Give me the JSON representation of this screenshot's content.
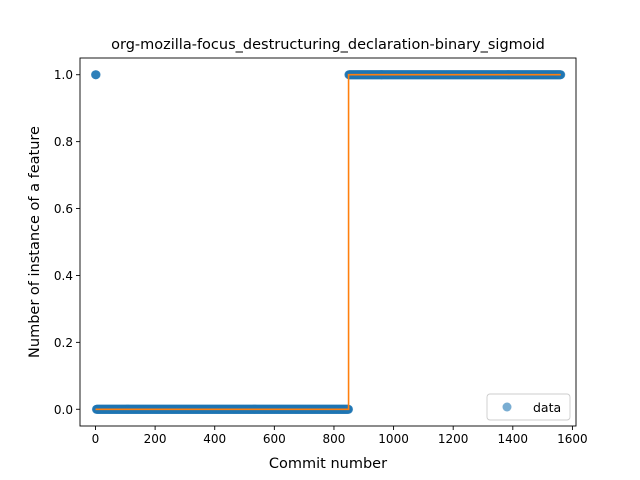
{
  "chart_data": {
    "type": "scatter",
    "title": "org-mozilla-focus_destructuring_declaration-binary_sigmoid",
    "xlabel": "Commit number",
    "ylabel": "Number of instance of a feature",
    "xlim": [
      -52,
      1612
    ],
    "ylim": [
      -0.05,
      1.05
    ],
    "xticks": [
      0,
      200,
      400,
      600,
      800,
      1000,
      1200,
      1400,
      1600
    ],
    "xtick_labels": [
      "0",
      "200",
      "400",
      "600",
      "800",
      "1000",
      "1200",
      "1400",
      "1600"
    ],
    "yticks": [
      0.0,
      0.2,
      0.4,
      0.6,
      0.8,
      1.0
    ],
    "ytick_labels": [
      "0.0",
      "0.2",
      "0.4",
      "0.6",
      "0.8",
      "1.0"
    ],
    "grid": false,
    "legend_position": "lower right",
    "series": [
      {
        "name": "data",
        "kind": "points",
        "color": "#1f77b4",
        "opacity": 0.6,
        "segments": [
          {
            "x_range": [
              0,
              2
            ],
            "y": 1
          },
          {
            "x_range": [
              3,
              849
            ],
            "y": 0
          },
          {
            "x_range": [
              850,
              1561
            ],
            "y": 1
          }
        ]
      },
      {
        "kind": "step-line",
        "color": "#ff7f0e",
        "x": [
          0,
          849,
          849,
          1561
        ],
        "y": [
          0,
          0,
          1,
          1
        ]
      }
    ]
  }
}
